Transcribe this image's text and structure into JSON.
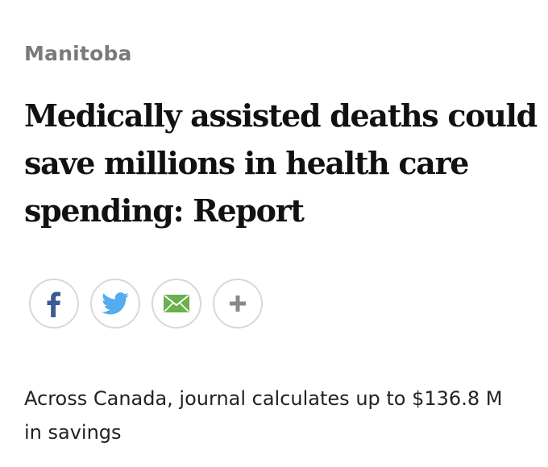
{
  "article": {
    "section": "Manitoba",
    "headline": "Medically assisted deaths could save millions in health care spending: Report",
    "subhead": "Across Canada, journal calculates up to $136.8 M in savings"
  },
  "share": {
    "buttons": [
      {
        "name": "facebook",
        "icon": "facebook-icon",
        "color": "#3b5998"
      },
      {
        "name": "twitter",
        "icon": "twitter-icon",
        "color": "#55acee"
      },
      {
        "name": "email",
        "icon": "envelope-icon",
        "color": "#6ab04c"
      },
      {
        "name": "more",
        "icon": "plus-icon",
        "color": "#8a8a8a"
      }
    ]
  }
}
